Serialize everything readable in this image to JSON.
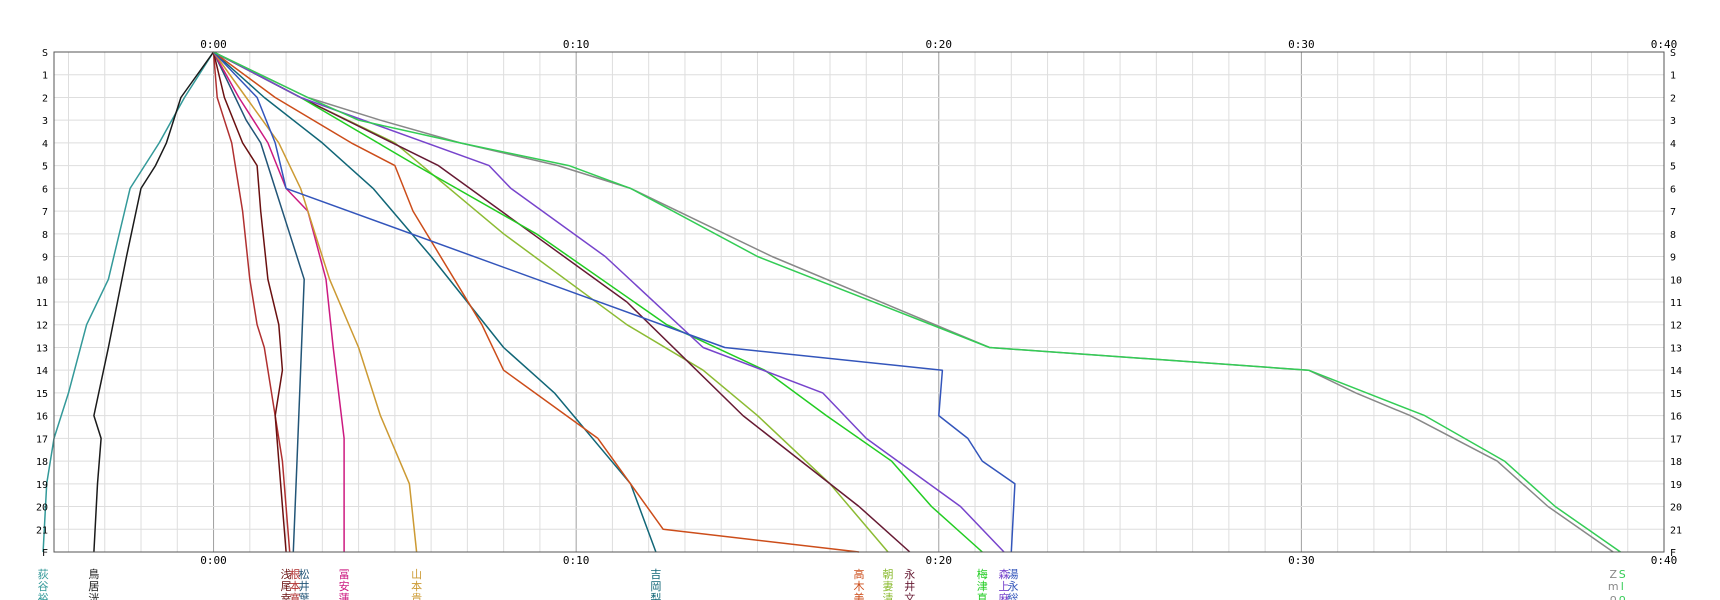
{
  "chart_data": {
    "type": "line",
    "title": "",
    "xlabel": "",
    "ylabel": "",
    "x_unit": "elapsed time (h:mm)",
    "xlim_minutes": [
      -4.4,
      40
    ],
    "x_ticks": [
      {
        "minutes": 0,
        "label": "0:00"
      },
      {
        "minutes": 10,
        "label": "0:10"
      },
      {
        "minutes": 20,
        "label": "0:20"
      },
      {
        "minutes": 30,
        "label": "0:30"
      },
      {
        "minutes": 40,
        "label": "0:40"
      }
    ],
    "y_axis": "checkpoint number",
    "y_ticks": [
      {
        "pos": 0,
        "label": "S"
      },
      {
        "pos": 1,
        "label": "1"
      },
      {
        "pos": 2,
        "label": "2"
      },
      {
        "pos": 3,
        "label": "3"
      },
      {
        "pos": 4,
        "label": "4"
      },
      {
        "pos": 5,
        "label": "5"
      },
      {
        "pos": 6,
        "label": "6"
      },
      {
        "pos": 7,
        "label": "7"
      },
      {
        "pos": 8,
        "label": "8"
      },
      {
        "pos": 9,
        "label": "9"
      },
      {
        "pos": 10,
        "label": "10"
      },
      {
        "pos": 11,
        "label": "11"
      },
      {
        "pos": 12,
        "label": "12"
      },
      {
        "pos": 13,
        "label": "13"
      },
      {
        "pos": 14,
        "label": "14"
      },
      {
        "pos": 15,
        "label": "15"
      },
      {
        "pos": 16,
        "label": "16"
      },
      {
        "pos": 17,
        "label": "17"
      },
      {
        "pos": 18,
        "label": "18"
      },
      {
        "pos": 19,
        "label": "19"
      },
      {
        "pos": 20,
        "label": "20"
      },
      {
        "pos": 21,
        "label": "21"
      },
      {
        "pos": 22,
        "label": "F"
      }
    ],
    "grid": true,
    "series": [
      {
        "name": "荻谷裕",
        "color": "#339999",
        "minutes": [
          0,
          -0.8,
          -1.5,
          -2.3,
          -2.9,
          -3.5,
          -4.0,
          -4.4,
          -4.6,
          -4.7
        ],
        "checkpoints": [
          0,
          2,
          4,
          6,
          10,
          12,
          15,
          17,
          19,
          22
        ]
      },
      {
        "name": "鳥居洸",
        "color": "#1a1a1a",
        "minutes": [
          0,
          -0.9,
          -1.3,
          -1.6,
          -2.0,
          -2.4,
          -2.9,
          -3.3,
          -3.1,
          -3.2,
          -3.3
        ],
        "checkpoints": [
          0,
          2,
          4,
          5,
          6,
          9,
          13,
          16,
          17,
          19,
          22
        ]
      },
      {
        "name": "根本寛",
        "color": "#b03030",
        "minutes": [
          0,
          0.1,
          0.3,
          0.5,
          0.6,
          0.8,
          1.0,
          1.2,
          1.4,
          1.9,
          2.1
        ],
        "checkpoints": [
          0,
          2,
          3,
          4,
          5,
          7,
          10,
          12,
          13,
          18,
          22
        ]
      },
      {
        "name": "浅尾幸",
        "color": "#6a1010",
        "minutes": [
          0,
          0.3,
          0.8,
          1.2,
          1.3,
          1.5,
          1.8,
          1.9,
          1.7,
          1.8,
          2.0
        ],
        "checkpoints": [
          0,
          2,
          4,
          5,
          7,
          10,
          12,
          14,
          16,
          18,
          22
        ]
      },
      {
        "name": "松井葉",
        "color": "#225577",
        "minutes": [
          0,
          0.9,
          1.3,
          1.7,
          2.1,
          2.5,
          2.4,
          2.3,
          2.2
        ],
        "checkpoints": [
          0,
          3,
          4,
          6,
          8,
          10,
          14,
          18,
          22
        ]
      },
      {
        "name": "冨安蓮",
        "color": "#cc1a80",
        "minutes": [
          0,
          0.7,
          1.5,
          2.0,
          2.6,
          3.1,
          3.3,
          3.6,
          3.6
        ],
        "checkpoints": [
          0,
          2,
          4,
          6,
          7,
          10,
          13,
          17,
          22
        ]
      },
      {
        "name": "山本貴",
        "color": "#cc9a33",
        "minutes": [
          0,
          0.9,
          1.8,
          2.4,
          3.2,
          4.0,
          4.6,
          5.4,
          5.6
        ],
        "checkpoints": [
          0,
          2,
          4,
          6,
          10,
          13,
          16,
          19,
          22
        ]
      },
      {
        "name": "吉岡梨",
        "color": "#116677",
        "minutes": [
          0,
          1.4,
          3.0,
          4.4,
          6.0,
          8.0,
          9.4,
          11.5,
          12.2
        ],
        "checkpoints": [
          0,
          2,
          4,
          6,
          9,
          13,
          15,
          19,
          22
        ]
      },
      {
        "name": "高木美",
        "color": "#cc4d1a",
        "minutes": [
          0,
          1.7,
          3.8,
          5.0,
          5.5,
          7.4,
          8.0,
          10.6,
          12.4,
          17.8
        ],
        "checkpoints": [
          0,
          2,
          4,
          5,
          7,
          12,
          14,
          17,
          21,
          22
        ]
      },
      {
        "name": "朝妻清",
        "color": "#8cbb33",
        "minutes": [
          0,
          2.4,
          5.0,
          8.0,
          11.4,
          13.5,
          15.0,
          17.0,
          18.6
        ],
        "checkpoints": [
          0,
          2,
          4,
          8,
          12,
          14,
          16,
          19,
          22
        ]
      },
      {
        "name": "永井文",
        "color": "#661a33",
        "minutes": [
          0,
          2.4,
          6.2,
          8.8,
          11.4,
          14.6,
          17.8,
          19.2
        ],
        "checkpoints": [
          0,
          2,
          5,
          8,
          11,
          16,
          20,
          22
        ]
      },
      {
        "name": "梅津真",
        "color": "#22cc22",
        "minutes": [
          0,
          2.4,
          5.6,
          8.9,
          12.5,
          15.2,
          16.9,
          18.7,
          19.8,
          21.2
        ],
        "checkpoints": [
          0,
          2,
          5,
          8,
          12,
          14,
          16,
          18,
          20,
          22
        ]
      },
      {
        "name": "森上麻",
        "color": "#7744cc",
        "minutes": [
          0,
          2.4,
          7.6,
          8.2,
          10.8,
          13.5,
          16.8,
          18.0,
          20.6,
          21.8
        ],
        "checkpoints": [
          0,
          2,
          5,
          6,
          9,
          13,
          15,
          17,
          20,
          22
        ]
      },
      {
        "name": "湯永総",
        "color": "#3355bb",
        "minutes": [
          0,
          1.2,
          1.7,
          2.0,
          14.1,
          20.1,
          20.0,
          20.8,
          21.2,
          22.1,
          22.0
        ],
        "checkpoints": [
          0,
          2,
          4,
          6,
          13,
          14,
          16,
          17,
          18,
          19,
          22
        ]
      },
      {
        "name": "Zmo",
        "color": "#888888",
        "minutes": [
          0,
          2.6,
          4.6,
          6.8,
          9.5,
          11.5,
          15.4,
          21.4,
          30.2,
          31.5,
          33.0,
          35.4,
          36.8,
          38.6
        ],
        "checkpoints": [
          0,
          2,
          3,
          4,
          5,
          6,
          9,
          13,
          14,
          15,
          16,
          18,
          20,
          22
        ]
      },
      {
        "name": "Slo",
        "color": "#33cc55",
        "minutes": [
          0,
          2.6,
          4.0,
          6.8,
          9.8,
          11.5,
          15.0,
          21.4,
          30.2,
          31.8,
          33.4,
          35.6,
          37.0,
          38.8
        ],
        "checkpoints": [
          0,
          2,
          3,
          4,
          5,
          6,
          9,
          13,
          14,
          15,
          16,
          18,
          20,
          22
        ]
      }
    ]
  }
}
